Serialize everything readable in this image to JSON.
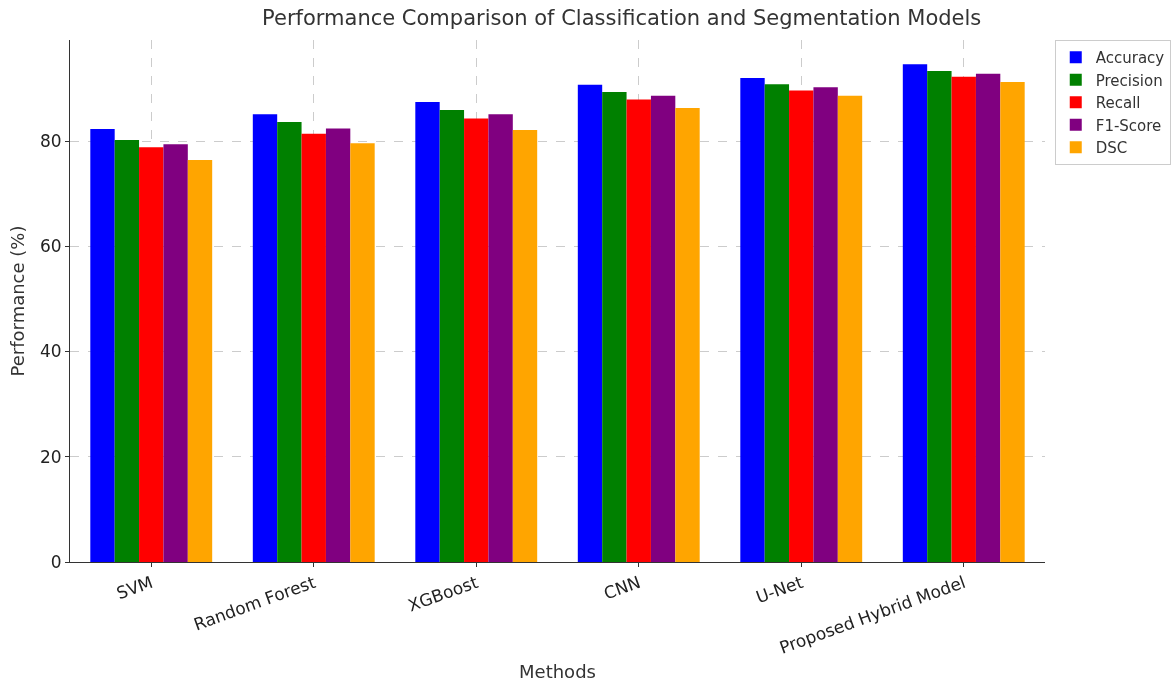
{
  "chart_data": {
    "type": "bar",
    "title": "Performance Comparison of Classification and Segmentation Models",
    "xlabel": "Methods",
    "ylabel": "Performance (%)",
    "categories": [
      "SVM",
      "Random Forest",
      "XGBoost",
      "CNN",
      "U-Net",
      "Proposed Hybrid Model"
    ],
    "series": [
      {
        "name": "Accuracy",
        "color": "#0000ff",
        "values": [
          82.3,
          85.1,
          87.4,
          90.7,
          92.0,
          94.6
        ]
      },
      {
        "name": "Precision",
        "color": "#008000",
        "values": [
          80.2,
          83.6,
          85.9,
          89.3,
          90.8,
          93.3
        ]
      },
      {
        "name": "Recall",
        "color": "#ff0000",
        "values": [
          78.8,
          81.4,
          84.3,
          87.9,
          89.6,
          92.2
        ]
      },
      {
        "name": "F1-Score",
        "color": "#800080",
        "values": [
          79.4,
          82.4,
          85.1,
          88.6,
          90.2,
          92.8
        ]
      },
      {
        "name": "DSC",
        "color": "#ffa500",
        "values": [
          76.4,
          79.6,
          82.1,
          86.3,
          88.6,
          91.2
        ]
      }
    ],
    "ylim": [
      0,
      99.2
    ],
    "yticks": [
      0,
      20,
      40,
      60,
      80
    ],
    "grid": true,
    "legend": "right"
  }
}
